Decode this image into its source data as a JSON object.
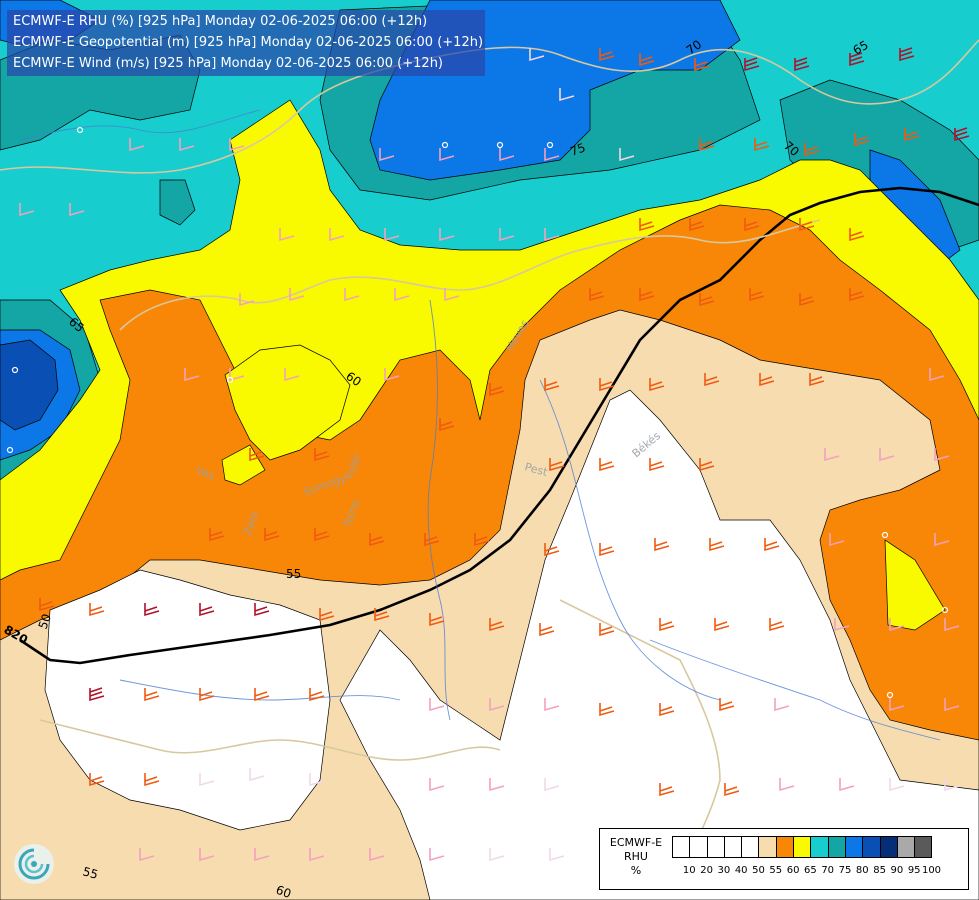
{
  "header": {
    "lines": [
      "ECMWF-E RHU (%) [925 hPa] Monday 02-06-2025 06:00 (+12h)",
      "ECMWF-E Geopotential (m) [925 hPa] Monday 02-06-2025 06:00 (+12h)",
      "ECMWF-E Wind (m/s) [925 hPa] Monday 02-06-2025 06:00 (+12h)"
    ]
  },
  "legend": {
    "caption": [
      "ECMWF-E",
      "RHU",
      "%"
    ],
    "levels": [
      "10",
      "20",
      "30",
      "40",
      "50",
      "55",
      "60",
      "65",
      "70",
      "75",
      "80",
      "85",
      "90",
      "95",
      "100"
    ],
    "colors": [
      "#ffffff",
      "#ffffff",
      "#ffffff",
      "#ffffff",
      "#ffffff",
      "#f7dcb0",
      "#f98707",
      "#f9f900",
      "#18cdcd",
      "#14a5a5",
      "#0c77e6",
      "#0a4fb4",
      "#062e78",
      "#a9a9a9",
      "#5a5a5a"
    ]
  },
  "contour_labels": {
    "rhu": [
      "70",
      "65",
      "75",
      "70",
      "65",
      "60",
      "55",
      "50",
      "55",
      "60"
    ],
    "geopotential": [
      "820"
    ]
  },
  "place_labels": [
    "Heves",
    "Pest",
    "Békés",
    "Vas",
    "Somogy",
    "Fejér",
    "Zala",
    "Tolna"
  ],
  "colors": {
    "barb_warm": "#f05a10",
    "barb_dark": "#b0102a",
    "barb_pink": "#f4a0c0",
    "barb_light": "#f0d8e8",
    "border": "#d8c8a0",
    "river": "#4b7bd6"
  },
  "icons": {
    "logo": "ecmwf-logo-icon"
  }
}
